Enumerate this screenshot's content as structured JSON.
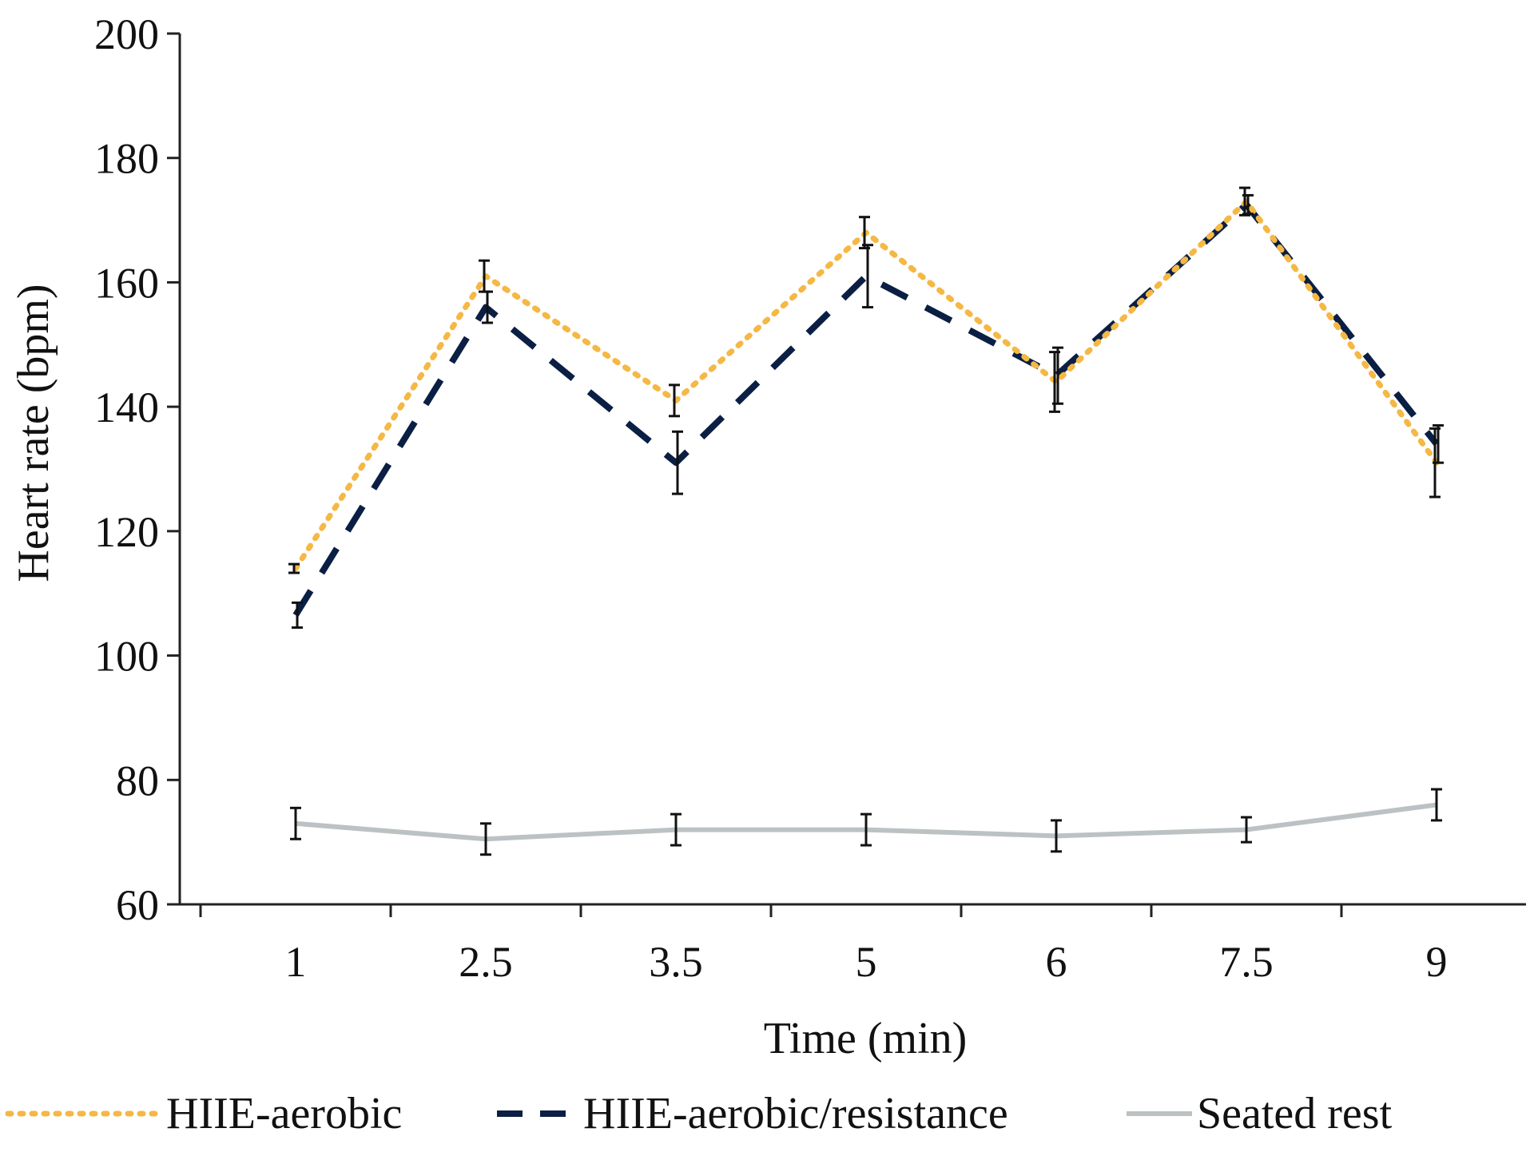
{
  "chart_data": {
    "type": "line",
    "title": "",
    "xlabel": "Time (min)",
    "ylabel": "Heart rate (bpm)",
    "categories": [
      "1",
      "2.5",
      "3.5",
      "5",
      "6",
      "7.5",
      "9"
    ],
    "ylim": [
      60,
      200
    ],
    "yticks": [
      "60",
      "80",
      "100",
      "120",
      "140",
      "160",
      "180",
      "200"
    ],
    "grid": false,
    "legend_position": "bottom",
    "series": [
      {
        "name": "HIIE-aerobic",
        "values": [
          114,
          161,
          141,
          168,
          144,
          173,
          131
        ],
        "error": [
          0.7,
          2.5,
          2.5,
          2.5,
          4.8,
          2.2,
          5.5
        ],
        "color": "#F5B844",
        "style": "dotted"
      },
      {
        "name": "HIIE-aerobic/resistance",
        "values": [
          106.5,
          156,
          131,
          161,
          145,
          172.5,
          134
        ],
        "error": [
          2,
          2.5,
          5,
          5,
          4.5,
          1.5,
          3
        ],
        "color": "#0B1F44",
        "style": "dashed"
      },
      {
        "name": "Seated rest",
        "values": [
          73,
          70.5,
          72,
          72,
          71,
          72,
          76
        ],
        "error": [
          2.5,
          2.5,
          2.5,
          2.5,
          2.5,
          2,
          2.5
        ],
        "color": "#BCC2C4",
        "style": "solid"
      }
    ],
    "error_bar_color": "#111111"
  }
}
